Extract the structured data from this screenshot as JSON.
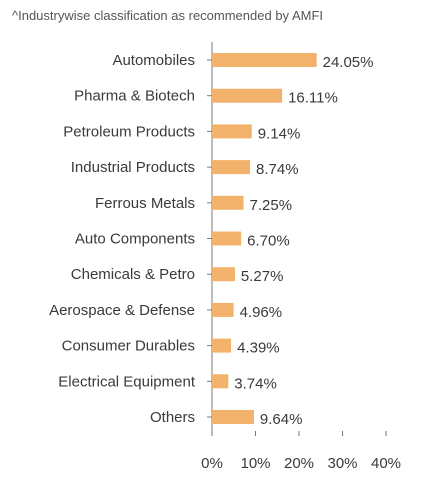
{
  "note": "^Industrywise classification as recommended by AMFI",
  "chart_data": {
    "type": "bar",
    "orientation": "horizontal",
    "categories": [
      "Automobiles",
      "Pharma & Biotech",
      "Petroleum Products",
      "Industrial Products",
      "Ferrous Metals",
      "Auto Components",
      "Chemicals & Petro",
      "Aerospace & Defense",
      "Consumer Durables",
      "Electrical Equipment",
      "Others"
    ],
    "values": [
      24.05,
      16.11,
      9.14,
      8.74,
      7.25,
      6.7,
      5.27,
      4.96,
      4.39,
      3.74,
      9.64
    ],
    "value_labels": [
      "24.05%",
      "16.11%",
      "9.14%",
      "8.74%",
      "7.25%",
      "6.70%",
      "5.27%",
      "4.96%",
      "4.39%",
      "3.74%",
      "9.64%"
    ],
    "xlim": [
      0,
      40
    ],
    "xticks": [
      "0%",
      "10%",
      "20%",
      "30%",
      "40%"
    ],
    "bar_color": "#F2B26B",
    "axis_color": "#7a7a7a",
    "grid": false,
    "legend": false
  }
}
